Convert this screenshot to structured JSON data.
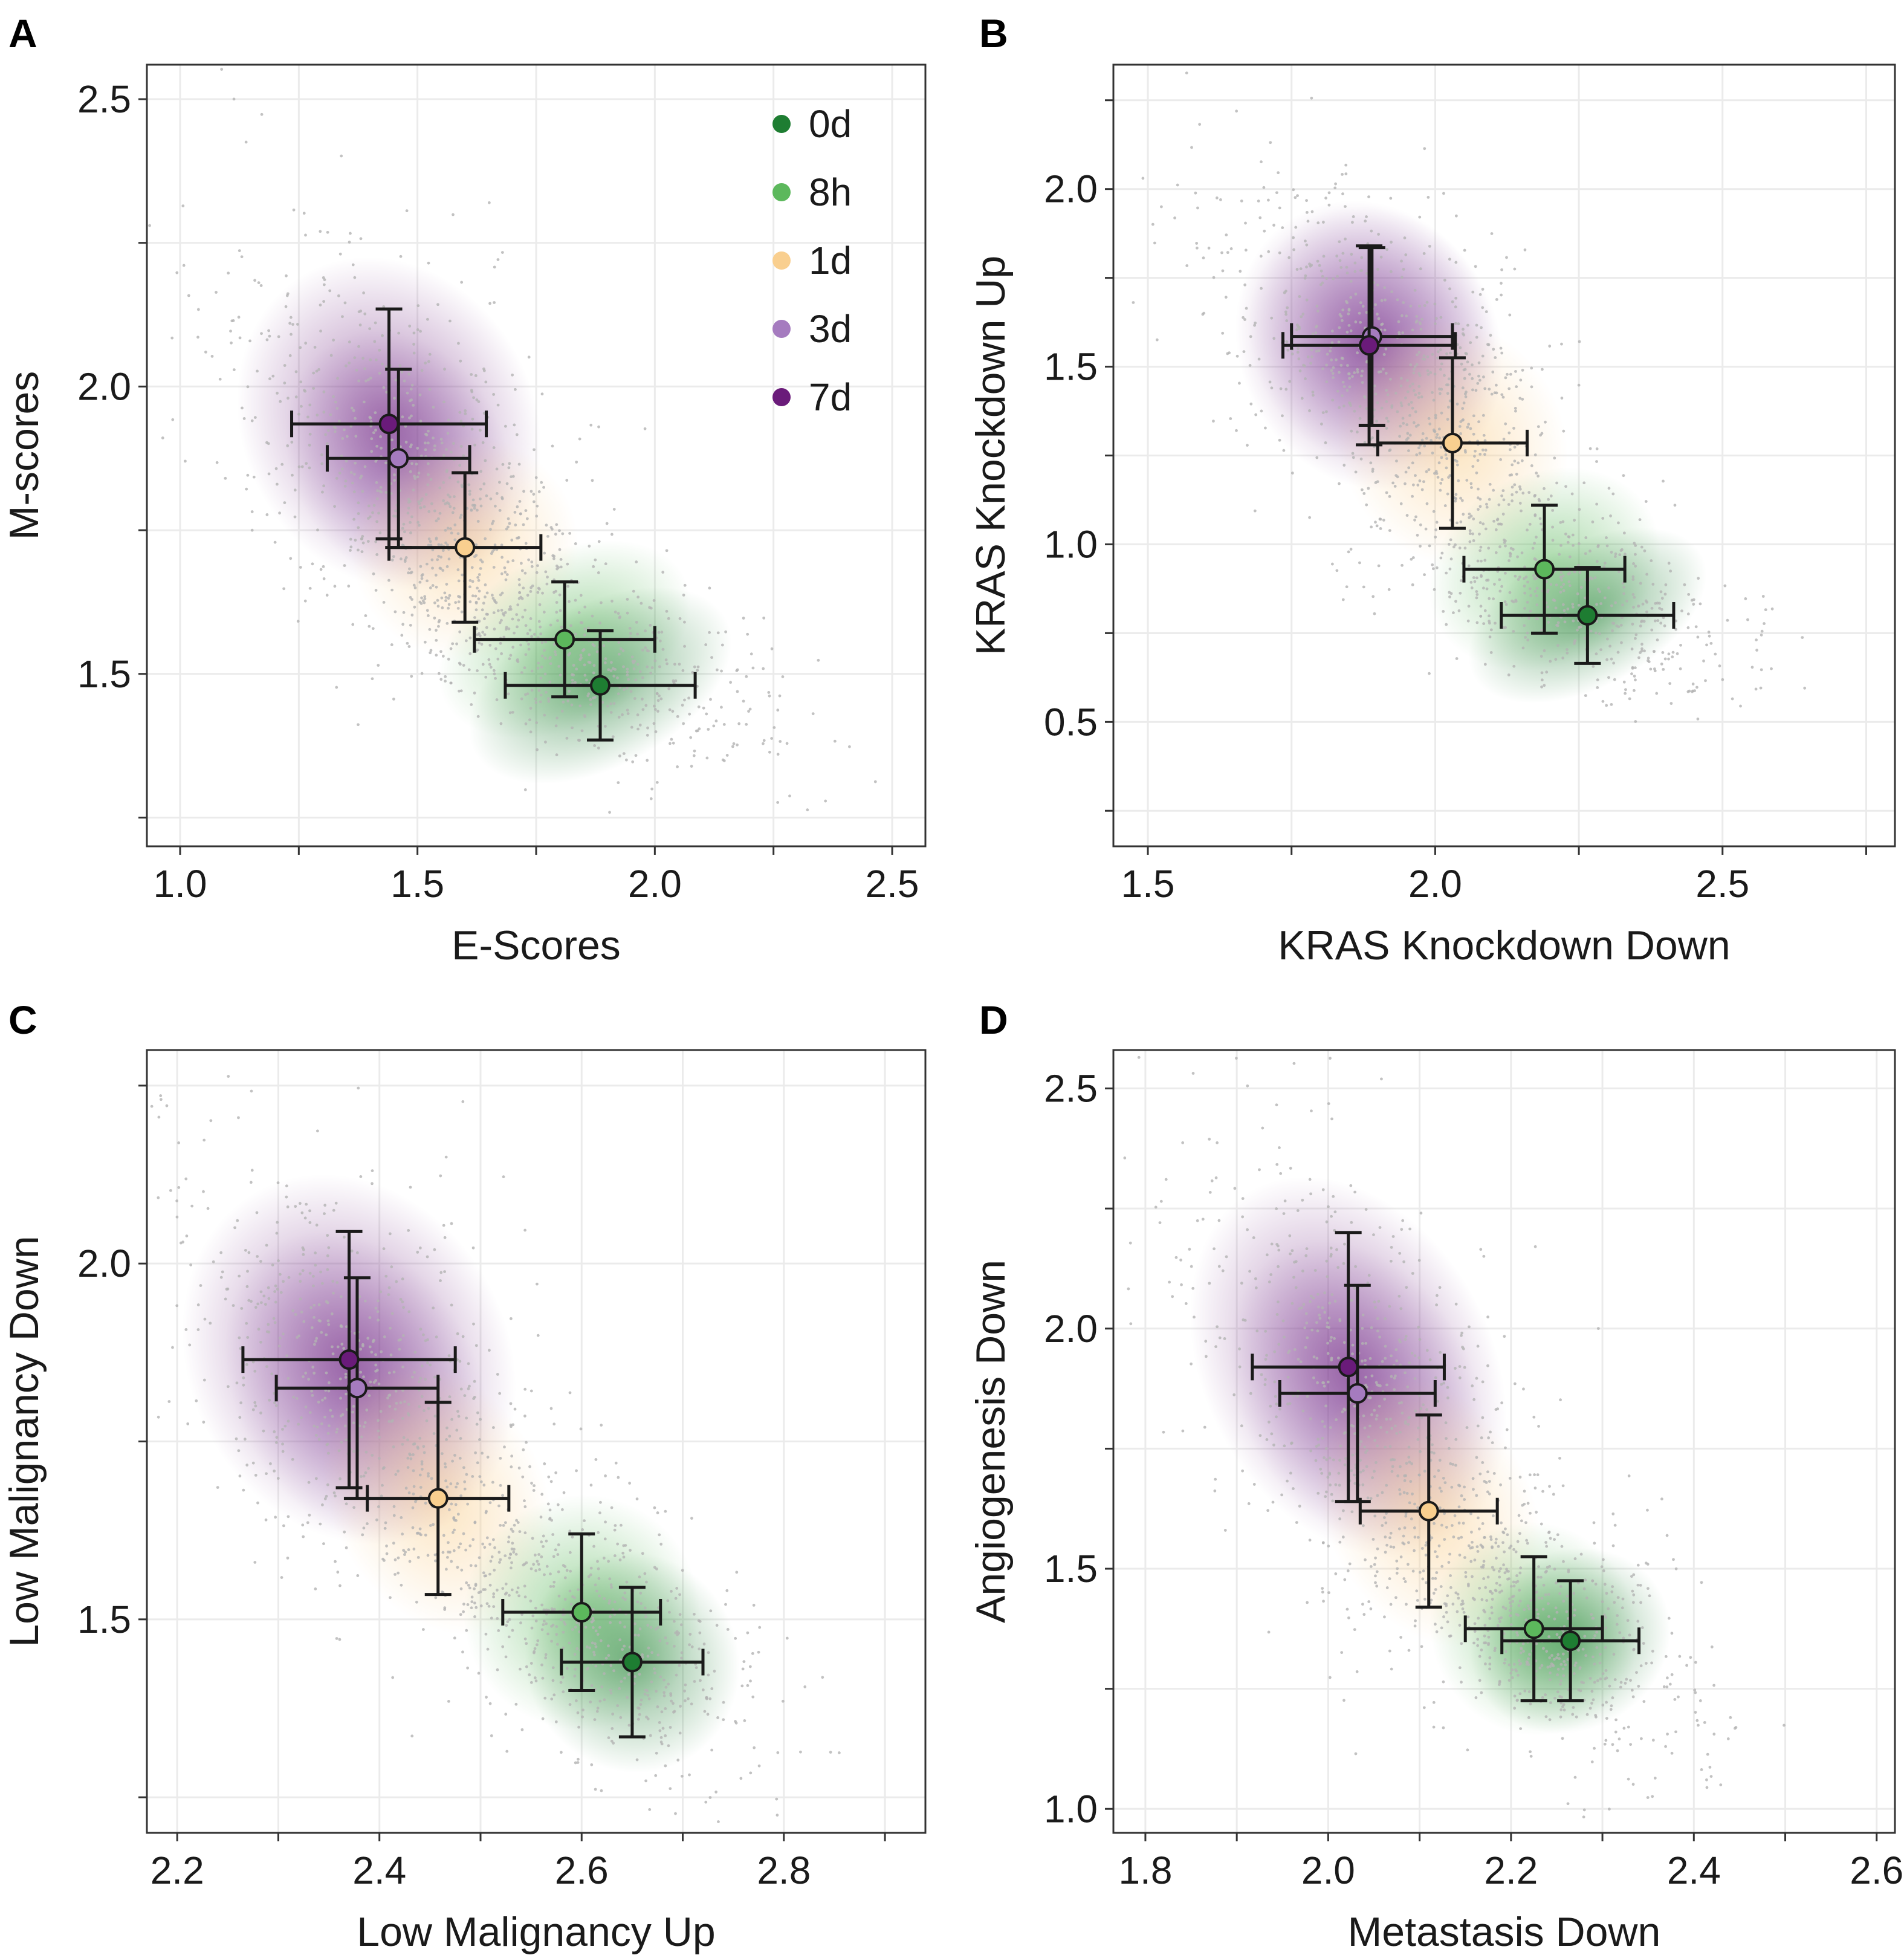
{
  "legend": {
    "items": [
      {
        "label": "0d",
        "color": "#1e7d32"
      },
      {
        "label": "8h",
        "color": "#5cb85c"
      },
      {
        "label": "1d",
        "color": "#f9cf8f"
      },
      {
        "label": "3d",
        "color": "#a57bbf"
      },
      {
        "label": "7d",
        "color": "#6a1b7a"
      }
    ]
  },
  "chart_data": [
    {
      "panel": "A",
      "type": "scatter",
      "xlabel": "E-Scores",
      "ylabel": "M-scores",
      "xlim": [
        0.93,
        2.57
      ],
      "ylim": [
        1.2,
        2.56
      ],
      "xticks": [
        1.0,
        1.5,
        2.0,
        2.5
      ],
      "xtick_labels": [
        "1.0",
        "1.5",
        "2.0",
        "2.5"
      ],
      "yticks": [
        1.5,
        2.0,
        2.5
      ],
      "ytick_labels": [
        "1.5",
        "2.0",
        "2.5"
      ],
      "grid": true,
      "series": [
        {
          "name": "0d",
          "x": 1.885,
          "y": 1.48,
          "xerr": 0.2,
          "yerr": 0.095
        },
        {
          "name": "8h",
          "x": 1.81,
          "y": 1.56,
          "xerr": 0.19,
          "yerr": 0.1
        },
        {
          "name": "1d",
          "x": 1.6,
          "y": 1.72,
          "xerr": 0.16,
          "yerr": 0.13
        },
        {
          "name": "3d",
          "x": 1.46,
          "y": 1.875,
          "xerr": 0.15,
          "yerr": 0.155
        },
        {
          "name": "7d",
          "x": 1.44,
          "y": 1.935,
          "xerr": 0.205,
          "yerr": 0.2
        }
      ]
    },
    {
      "panel": "B",
      "type": "scatter",
      "xlabel": "KRAS Knockdown Down",
      "ylabel": "KRAS Knockdown Up",
      "xlim": [
        1.44,
        2.8
      ],
      "ylim": [
        0.15,
        2.35
      ],
      "xticks": [
        1.5,
        2.0,
        2.5
      ],
      "xtick_labels": [
        "1.5",
        "2.0",
        "2.5"
      ],
      "yticks": [
        0.5,
        1.0,
        1.5,
        2.0
      ],
      "ytick_labels": [
        "0.5",
        "1.0",
        "1.5",
        "2.0"
      ],
      "grid": true,
      "series": [
        {
          "name": "0d",
          "x": 2.265,
          "y": 0.8,
          "xerr": 0.15,
          "yerr": 0.135
        },
        {
          "name": "8h",
          "x": 2.19,
          "y": 0.93,
          "xerr": 0.14,
          "yerr": 0.18
        },
        {
          "name": "1d",
          "x": 2.03,
          "y": 1.285,
          "xerr": 0.13,
          "yerr": 0.24
        },
        {
          "name": "3d",
          "x": 1.89,
          "y": 1.585,
          "xerr": 0.14,
          "yerr": 0.25
        },
        {
          "name": "7d",
          "x": 1.885,
          "y": 1.56,
          "xerr": 0.15,
          "yerr": 0.28
        }
      ]
    },
    {
      "panel": "C",
      "type": "scatter",
      "xlabel": "Low Malignancy Up",
      "ylabel": "Low Malignancy Down",
      "xlim": [
        2.17,
        2.94
      ],
      "ylim": [
        1.2,
        2.3
      ],
      "xticks": [
        2.2,
        2.4,
        2.6,
        2.8
      ],
      "xtick_labels": [
        "2.2",
        "2.4",
        "2.6",
        "2.8"
      ],
      "yticks": [
        1.5,
        2.0
      ],
      "ytick_labels": [
        "1.5",
        "2.0"
      ],
      "grid": true,
      "series": [
        {
          "name": "0d",
          "x": 2.65,
          "y": 1.44,
          "xerr": 0.07,
          "yerr": 0.105
        },
        {
          "name": "8h",
          "x": 2.6,
          "y": 1.51,
          "xerr": 0.078,
          "yerr": 0.11
        },
        {
          "name": "1d",
          "x": 2.458,
          "y": 1.67,
          "xerr": 0.07,
          "yerr": 0.135
        },
        {
          "name": "3d",
          "x": 2.378,
          "y": 1.825,
          "xerr": 0.08,
          "yerr": 0.155
        },
        {
          "name": "7d",
          "x": 2.37,
          "y": 1.865,
          "xerr": 0.105,
          "yerr": 0.18
        }
      ]
    },
    {
      "panel": "D",
      "type": "scatter",
      "xlabel": "Metastasis Down",
      "ylabel": "Angiogenesis Down",
      "xlim": [
        1.765,
        2.62
      ],
      "ylim": [
        0.95,
        2.58
      ],
      "xticks": [
        1.8,
        2.0,
        2.2,
        2.4,
        2.6
      ],
      "xtick_labels": [
        "1.8",
        "2.0",
        "2.2",
        "2.4",
        "2.6"
      ],
      "yticks": [
        1.0,
        1.5,
        2.0,
        2.5
      ],
      "ytick_labels": [
        "1.0",
        "1.5",
        "2.0",
        "2.5"
      ],
      "grid": true,
      "series": [
        {
          "name": "0d",
          "x": 2.265,
          "y": 1.35,
          "xerr": 0.075,
          "yerr": 0.125
        },
        {
          "name": "8h",
          "x": 2.225,
          "y": 1.375,
          "xerr": 0.075,
          "yerr": 0.15
        },
        {
          "name": "1d",
          "x": 2.11,
          "y": 1.62,
          "xerr": 0.075,
          "yerr": 0.2
        },
        {
          "name": "3d",
          "x": 2.032,
          "y": 1.865,
          "xerr": 0.085,
          "yerr": 0.225
        },
        {
          "name": "7d",
          "x": 2.022,
          "y": 1.92,
          "xerr": 0.105,
          "yerr": 0.28
        }
      ]
    }
  ]
}
